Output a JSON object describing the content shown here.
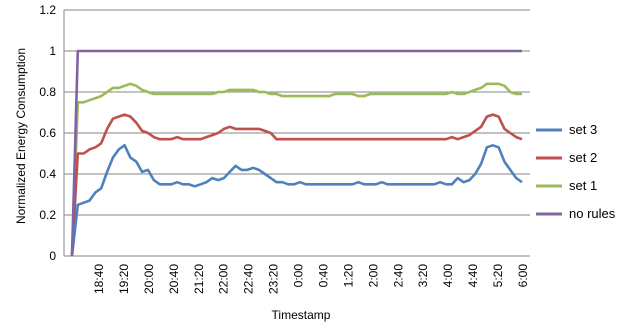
{
  "chart_data": {
    "type": "line",
    "title": "",
    "xlabel": "Timestamp",
    "ylabel": "Normalized Energy Consumption",
    "ylim": [
      0,
      1.2
    ],
    "yticks": [
      "0",
      "0.2",
      "0.4",
      "0.6",
      "0.8",
      "1",
      "1.2"
    ],
    "ytick_values": [
      0,
      0.2,
      0.4,
      0.6,
      0.8,
      1.0,
      1.2
    ],
    "xtick_labels": [
      "18:40",
      "19:20",
      "20:00",
      "20:40",
      "21:20",
      "22:00",
      "22:40",
      "23:20",
      "0:00",
      "0:40",
      "1:20",
      "2:00",
      "2:40",
      "3:20",
      "4:00",
      "4:40",
      "5:20",
      "6:00"
    ],
    "grid": "horizontal",
    "legend_position": "right",
    "series": [
      {
        "name": "set 3",
        "color": "#4f81bd",
        "values": [
          0,
          0.25,
          0.26,
          0.27,
          0.31,
          0.33,
          0.41,
          0.48,
          0.52,
          0.54,
          0.48,
          0.46,
          0.41,
          0.42,
          0.37,
          0.35,
          0.35,
          0.35,
          0.36,
          0.35,
          0.35,
          0.34,
          0.35,
          0.36,
          0.38,
          0.37,
          0.38,
          0.41,
          0.44,
          0.42,
          0.42,
          0.43,
          0.42,
          0.4,
          0.38,
          0.36,
          0.36,
          0.35,
          0.35,
          0.36,
          0.35,
          0.35,
          0.35,
          0.35,
          0.35,
          0.35,
          0.35,
          0.35,
          0.35,
          0.36,
          0.35,
          0.35,
          0.35,
          0.36,
          0.35,
          0.35,
          0.35,
          0.35,
          0.35,
          0.35,
          0.35,
          0.35,
          0.35,
          0.36,
          0.35,
          0.35,
          0.38,
          0.36,
          0.37,
          0.4,
          0.45,
          0.53,
          0.54,
          0.53,
          0.46,
          0.42,
          0.38,
          0.36
        ]
      },
      {
        "name": "set 2",
        "color": "#c0504d",
        "values": [
          0,
          0.5,
          0.5,
          0.52,
          0.53,
          0.55,
          0.62,
          0.67,
          0.68,
          0.69,
          0.68,
          0.65,
          0.61,
          0.6,
          0.58,
          0.57,
          0.57,
          0.57,
          0.58,
          0.57,
          0.57,
          0.57,
          0.57,
          0.58,
          0.59,
          0.6,
          0.62,
          0.63,
          0.62,
          0.62,
          0.62,
          0.62,
          0.62,
          0.61,
          0.6,
          0.57,
          0.57,
          0.57,
          0.57,
          0.57,
          0.57,
          0.57,
          0.57,
          0.57,
          0.57,
          0.57,
          0.57,
          0.57,
          0.57,
          0.57,
          0.57,
          0.57,
          0.57,
          0.57,
          0.57,
          0.57,
          0.57,
          0.57,
          0.57,
          0.57,
          0.57,
          0.57,
          0.57,
          0.57,
          0.57,
          0.58,
          0.57,
          0.58,
          0.59,
          0.61,
          0.63,
          0.68,
          0.69,
          0.68,
          0.62,
          0.6,
          0.58,
          0.57
        ]
      },
      {
        "name": "set 1",
        "color": "#9bbb59",
        "values": [
          0,
          0.75,
          0.75,
          0.76,
          0.77,
          0.78,
          0.8,
          0.82,
          0.82,
          0.83,
          0.84,
          0.83,
          0.81,
          0.8,
          0.79,
          0.79,
          0.79,
          0.79,
          0.79,
          0.79,
          0.79,
          0.79,
          0.79,
          0.79,
          0.79,
          0.8,
          0.8,
          0.81,
          0.81,
          0.81,
          0.81,
          0.81,
          0.8,
          0.8,
          0.79,
          0.79,
          0.78,
          0.78,
          0.78,
          0.78,
          0.78,
          0.78,
          0.78,
          0.78,
          0.78,
          0.79,
          0.79,
          0.79,
          0.79,
          0.78,
          0.78,
          0.79,
          0.79,
          0.79,
          0.79,
          0.79,
          0.79,
          0.79,
          0.79,
          0.79,
          0.79,
          0.79,
          0.79,
          0.79,
          0.79,
          0.8,
          0.79,
          0.79,
          0.8,
          0.81,
          0.82,
          0.84,
          0.84,
          0.84,
          0.83,
          0.8,
          0.79,
          0.79
        ]
      },
      {
        "name": "no rules",
        "color": "#8064a2",
        "values": [
          0,
          1,
          1,
          1,
          1,
          1,
          1,
          1,
          1,
          1,
          1,
          1,
          1,
          1,
          1,
          1,
          1,
          1,
          1,
          1,
          1,
          1,
          1,
          1,
          1,
          1,
          1,
          1,
          1,
          1,
          1,
          1,
          1,
          1,
          1,
          1,
          1,
          1,
          1,
          1,
          1,
          1,
          1,
          1,
          1,
          1,
          1,
          1,
          1,
          1,
          1,
          1,
          1,
          1,
          1,
          1,
          1,
          1,
          1,
          1,
          1,
          1,
          1,
          1,
          1,
          1,
          1,
          1,
          1,
          1,
          1,
          1,
          1,
          1,
          1,
          1,
          1,
          1
        ]
      }
    ]
  }
}
